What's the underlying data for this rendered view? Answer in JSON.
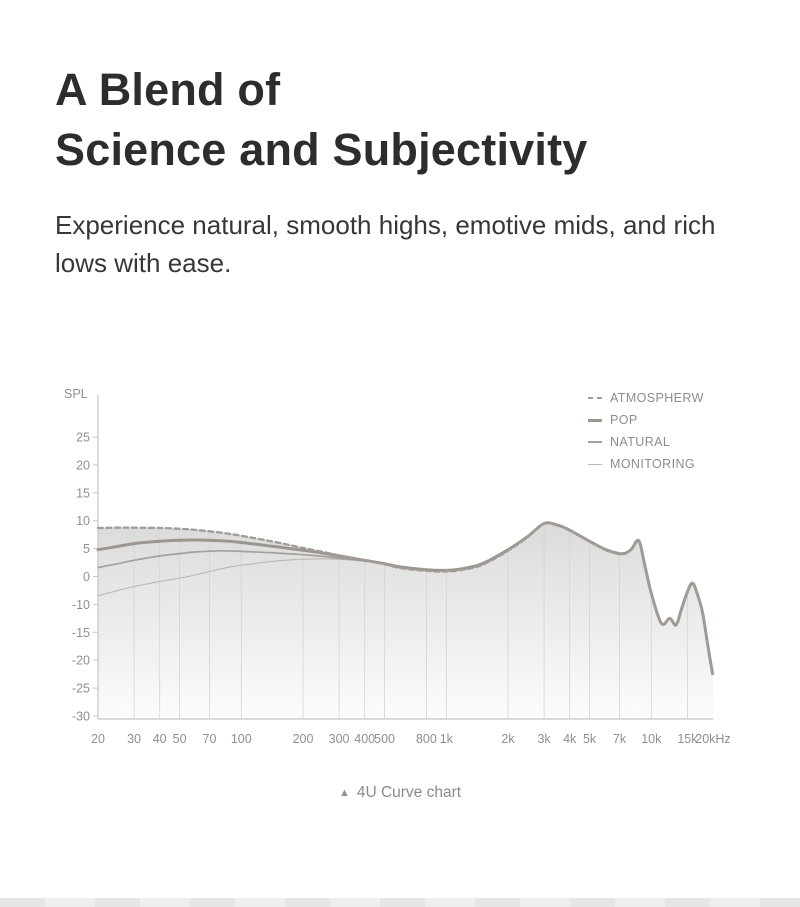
{
  "page": {
    "title_line1": "A Blend of",
    "title_line2": "Science and Subjectivity",
    "subtitle": "Experience natural, smooth highs, emotive mids, and rich lows with ease.",
    "caption_icon": "▲"
  },
  "chart_data": {
    "type": "line",
    "title": "4U Curve chart",
    "ylabel": "SPL",
    "x_unit": "Hz",
    "x_scale": "log",
    "x_range": [
      20,
      20000
    ],
    "ylim": [
      -30,
      25
    ],
    "ytick_note": "axis omits -5; the 0 to -10 gap occupies one tick step like the 5 dB steps",
    "legend_position": "top-right",
    "grid": "vertical-only-inside-fill",
    "axis_color": "#c6c6c6",
    "grid_color": "#d4d4d4",
    "tick_color": "#8f8f8f",
    "fill": {
      "stops": [
        "#c0c0c0",
        "#e1e1e1",
        "#fcfcfc"
      ]
    },
    "yticks": [
      {
        "v": 25,
        "label": "25"
      },
      {
        "v": 20,
        "label": "20"
      },
      {
        "v": 15,
        "label": "15"
      },
      {
        "v": 10,
        "label": "10"
      },
      {
        "v": 5,
        "label": "5"
      },
      {
        "v": 0,
        "label": "0"
      },
      {
        "v": -10,
        "label": "-10"
      },
      {
        "v": -15,
        "label": "-15"
      },
      {
        "v": -20,
        "label": "-20"
      },
      {
        "v": -25,
        "label": "-25"
      },
      {
        "v": -30,
        "label": "-30"
      }
    ],
    "xticks": [
      {
        "f": 20,
        "label": "20"
      },
      {
        "f": 30,
        "label": "30"
      },
      {
        "f": 40,
        "label": "40"
      },
      {
        "f": 50,
        "label": "50"
      },
      {
        "f": 70,
        "label": "70"
      },
      {
        "f": 100,
        "label": "100"
      },
      {
        "f": 200,
        "label": "200"
      },
      {
        "f": 300,
        "label": "300"
      },
      {
        "f": 400,
        "label": "400"
      },
      {
        "f": 500,
        "label": "500"
      },
      {
        "f": 800,
        "label": "800"
      },
      {
        "f": 1000,
        "label": "1k"
      },
      {
        "f": 2000,
        "label": "2k"
      },
      {
        "f": 3000,
        "label": "3k"
      },
      {
        "f": 4000,
        "label": "4k"
      },
      {
        "f": 5000,
        "label": "5k"
      },
      {
        "f": 7000,
        "label": "7k"
      },
      {
        "f": 10000,
        "label": "10k"
      },
      {
        "f": 15000,
        "label": "15k"
      },
      {
        "f": 20000,
        "label": "20kHz"
      }
    ],
    "x": [
      20,
      25,
      30,
      40,
      50,
      60,
      80,
      100,
      150,
      200,
      250,
      300,
      400,
      500,
      600,
      800,
      1000,
      1200,
      1500,
      2000,
      2500,
      3000,
      3500,
      4000,
      5000,
      6000,
      7000,
      7500,
      8000,
      8700,
      9300,
      10000,
      11200,
      12300,
      13200,
      14000,
      15000,
      15900,
      16800,
      17800,
      18800,
      19500,
      19900
    ],
    "series": [
      {
        "name": "ATMOSPHERW",
        "style": "dashed",
        "width": 2.3,
        "color": "#a29c97",
        "values": [
          8.7,
          8.75,
          8.75,
          8.7,
          8.55,
          8.35,
          7.85,
          7.3,
          6.1,
          5.1,
          4.4,
          3.8,
          2.9,
          2.2,
          1.5,
          1.0,
          0.9,
          1.2,
          2.1,
          4.6,
          7.1,
          9.5,
          9.2,
          8.3,
          6.3,
          4.8,
          4.1,
          4.2,
          4.9,
          6.4,
          2.0,
          -6.0,
          -13.4,
          -12.5,
          -13.7,
          -11.0,
          -5.5,
          -2.4,
          -6.5,
          -11.5,
          -17.0,
          -20.5,
          -22.4
        ]
      },
      {
        "name": "POP",
        "style": "solid",
        "width": 3,
        "color": "#9c9691",
        "values": [
          4.8,
          5.4,
          5.9,
          6.3,
          6.5,
          6.55,
          6.4,
          6.1,
          5.3,
          4.7,
          4.2,
          3.7,
          2.9,
          2.3,
          1.7,
          1.2,
          1.1,
          1.4,
          2.3,
          4.8,
          7.2,
          9.5,
          9.2,
          8.3,
          6.3,
          4.8,
          4.1,
          4.2,
          4.9,
          6.4,
          2.0,
          -6.0,
          -13.4,
          -12.5,
          -13.7,
          -11.0,
          -5.5,
          -2.4,
          -6.5,
          -11.5,
          -17.0,
          -20.5,
          -22.4
        ]
      },
      {
        "name": "NATURAL",
        "style": "solid",
        "width": 1.7,
        "color": "#a5a09b",
        "values": [
          1.6,
          2.3,
          2.9,
          3.7,
          4.1,
          4.4,
          4.6,
          4.5,
          4.2,
          3.9,
          3.6,
          3.3,
          2.8,
          2.25,
          1.7,
          1.2,
          1.1,
          1.4,
          2.3,
          4.8,
          7.2,
          9.5,
          9.2,
          8.3,
          6.3,
          4.8,
          4.1,
          4.2,
          4.9,
          6.4,
          2.0,
          -6.0,
          -13.4,
          -12.5,
          -13.7,
          -11.0,
          -5.5,
          -2.4,
          -6.5,
          -11.5,
          -17.0,
          -20.5,
          -22.4
        ]
      },
      {
        "name": "MONITORING",
        "style": "solid",
        "width": 1,
        "color": "#b9b4b0",
        "values": [
          -6.9,
          -5.0,
          -3.6,
          -1.8,
          -0.6,
          0.3,
          1.4,
          2.0,
          2.8,
          3.1,
          3.15,
          3.1,
          2.7,
          2.2,
          1.7,
          1.2,
          1.1,
          1.4,
          2.3,
          4.8,
          7.2,
          9.5,
          9.2,
          8.3,
          6.3,
          4.8,
          4.1,
          4.2,
          4.9,
          6.4,
          2.0,
          -6.0,
          -13.4,
          -12.5,
          -13.7,
          -11.0,
          -5.5,
          -2.4,
          -6.5,
          -11.5,
          -17.0,
          -20.5,
          -22.4
        ]
      }
    ]
  }
}
